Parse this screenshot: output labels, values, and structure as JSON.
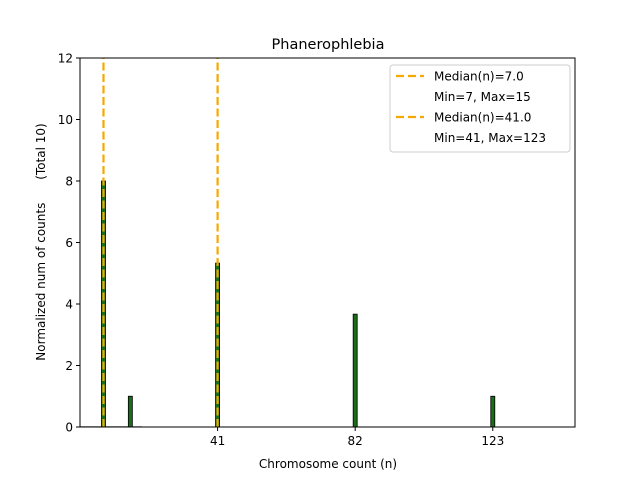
{
  "chart_data": {
    "type": "bar",
    "title": "Phanerophlebia",
    "xlabel": "Chromosome count (n)",
    "ylabel": "Normalized num of counts      (Total 10)",
    "xlim": [
      0,
      147.5
    ],
    "ylim": [
      0,
      12
    ],
    "xticks": [
      41,
      82,
      123
    ],
    "yticks": [
      0,
      2,
      4,
      6,
      8,
      10,
      12
    ],
    "grid": false,
    "bar_width": 1.2,
    "bar_color": "#1a6e1a",
    "bars": [
      {
        "x": 7,
        "value": 8.0
      },
      {
        "x": 15,
        "value": 1.0
      },
      {
        "x": 41,
        "value": 5.33
      },
      {
        "x": 82,
        "value": 3.67
      },
      {
        "x": 123,
        "value": 1.0
      }
    ],
    "median_lines": [
      {
        "x": 7,
        "color": "#f5a800"
      },
      {
        "x": 41,
        "color": "#f5a800"
      }
    ],
    "legend": {
      "placement": "top-right",
      "entries": [
        {
          "label": "Median(n)=7.0",
          "line": true
        },
        {
          "label": "Min=7, Max=15",
          "line": false
        },
        {
          "label": "Median(n)=41.0",
          "line": true
        },
        {
          "label": "Min=41, Max=123",
          "line": false
        }
      ]
    }
  }
}
